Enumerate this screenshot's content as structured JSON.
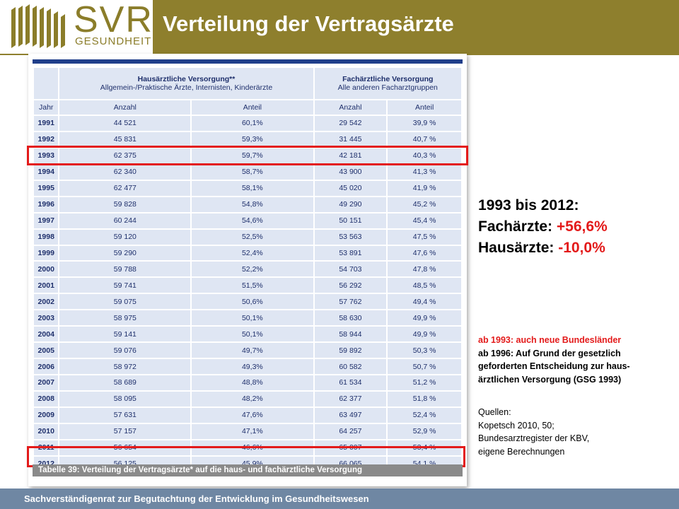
{
  "logo": {
    "main": "SVR",
    "sub": "GESUNDHEIT"
  },
  "header": {
    "title": "Verteilung der Vertragsärzte"
  },
  "table": {
    "group_headers": {
      "general": {
        "title": "Hausärztliche Versorgung**",
        "subtitle": "Allgemein-/Praktische Ärzte, Internisten, Kinderärzte"
      },
      "specialist": {
        "title": "Fachärztliche Versorgung",
        "subtitle": "Alle anderen Facharztgruppen"
      }
    },
    "columns": [
      "Jahr",
      "Anzahl",
      "Anteil",
      "Anzahl",
      "Anteil"
    ],
    "rows": [
      [
        "1991",
        "44 521",
        "60,1%",
        "29 542",
        "39,9 %"
      ],
      [
        "1992",
        "45 831",
        "59,3%",
        "31 445",
        "40,7 %"
      ],
      [
        "1993",
        "62 375",
        "59,7%",
        "42 181",
        "40,3 %"
      ],
      [
        "1994",
        "62 340",
        "58,7%",
        "43 900",
        "41,3 %"
      ],
      [
        "1995",
        "62 477",
        "58,1%",
        "45 020",
        "41,9 %"
      ],
      [
        "1996",
        "59 828",
        "54,8%",
        "49 290",
        "45,2 %"
      ],
      [
        "1997",
        "60 244",
        "54,6%",
        "50 151",
        "45,4 %"
      ],
      [
        "1998",
        "59 120",
        "52,5%",
        "53 563",
        "47,5 %"
      ],
      [
        "1999",
        "59 290",
        "52,4%",
        "53 891",
        "47,6 %"
      ],
      [
        "2000",
        "59 788",
        "52,2%",
        "54 703",
        "47,8 %"
      ],
      [
        "2001",
        "59 741",
        "51,5%",
        "56 292",
        "48,5 %"
      ],
      [
        "2002",
        "59 075",
        "50,6%",
        "57 762",
        "49,4 %"
      ],
      [
        "2003",
        "58 975",
        "50,1%",
        "58 630",
        "49,9 %"
      ],
      [
        "2004",
        "59 141",
        "50,1%",
        "58 944",
        "49,9 %"
      ],
      [
        "2005",
        "59 076",
        "49,7%",
        "59 892",
        "50,3 %"
      ],
      [
        "2006",
        "58 972",
        "49,3%",
        "60 582",
        "50,7 %"
      ],
      [
        "2007",
        "58 689",
        "48,8%",
        "61 534",
        "51,2 %"
      ],
      [
        "2008",
        "58 095",
        "48,2%",
        "62 377",
        "51,8 %"
      ],
      [
        "2009",
        "57 631",
        "47,6%",
        "63 497",
        "52,4 %"
      ],
      [
        "2010",
        "57 157",
        "47,1%",
        "64 257",
        "52,9 %"
      ],
      [
        "2011",
        "56 654",
        "46,6%",
        "65 007",
        "53,4 %"
      ],
      [
        "2012",
        "56 125",
        "45,9%",
        "66 065",
        "54,1 %"
      ]
    ],
    "caption": "Tabelle 39: Verteilung der Vertragsärzte* auf die haus- und fachärztliche Versorgung"
  },
  "summary": {
    "line1": "1993 bis 2012:",
    "specialist_label": "Fachärzte: ",
    "specialist_value": "+56,6%",
    "general_label": "Hausärzte: ",
    "general_value": "-10,0%"
  },
  "notes": {
    "line1": "ab 1993: auch neue Bundesländer",
    "line2": "ab 1996: Auf Grund der gesetzlich",
    "line3": "geforderten Entscheidung zur haus-",
    "line4": "ärztlichen Versorgung (GSG 1993)"
  },
  "sources": {
    "title": "Quellen:",
    "line1": "Kopetsch 2010, 50;",
    "line2": "Bundesarztregister der KBV,",
    "line3": "eigene Berechnungen"
  },
  "footer": {
    "text": "Sachverständigenrat zur Begutachtung der Entwicklung im Gesundheitswesen"
  },
  "colors": {
    "brand": "#8e7f2d",
    "highlight": "#e31a1a",
    "footer": "#6f87a3",
    "table_text": "#1e2f6b"
  }
}
